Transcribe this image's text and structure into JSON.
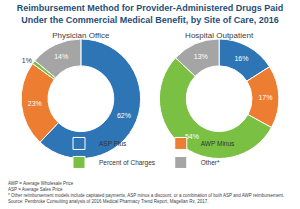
{
  "chart_data": {
    "type": "pie",
    "title": "Reimbursement Method for Provider-Administered Drugs Paid Under the Commercial Medical Benefit, by Site of Care, 2016",
    "categories": [
      "ASP Plus",
      "AWP Minus",
      "Percent of Charges",
      "Other*"
    ],
    "colors": [
      "#2e75b6",
      "#ed7d31",
      "#7ac143",
      "#a5a5a5"
    ],
    "series": [
      {
        "name": "Physician Office",
        "values": [
          62,
          23,
          1,
          14
        ],
        "value_labels": [
          "62%",
          "23%",
          "1%",
          "14%"
        ]
      },
      {
        "name": "Hospital Outpatient",
        "values": [
          16,
          17,
          54,
          13
        ],
        "value_labels": [
          "16%",
          "17%",
          "54%",
          "13%"
        ]
      }
    ],
    "data_labels": true,
    "legend": "bottom",
    "annotations": [
      "AWP = Average Wholesale Price",
      "ASP = Average Sales Price",
      "* Other reimbursement models include capitated payments, ASP minus a discount, or a combination of both ASP and AWP reimbursement.",
      "Source: Pembroke Consulting analysis of 2016 Medical Pharmacy Trend Report, Magellan Rx, 2017."
    ]
  }
}
